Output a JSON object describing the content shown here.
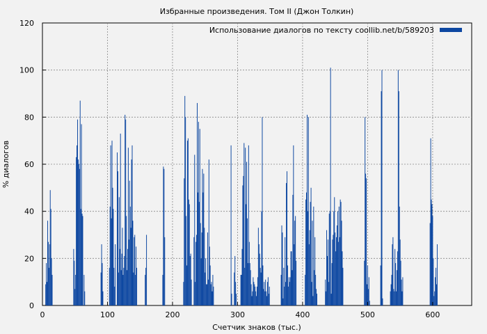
{
  "chart_data": {
    "type": "bar",
    "title": "Избранные произведения. Том II (Джон Толкин)",
    "xlabel": "Счетчик знаков (тыс.)",
    "ylabel": "% диалогов",
    "xlim": [
      0,
      660
    ],
    "ylim": [
      0,
      120
    ],
    "xticks": [
      0,
      100,
      200,
      300,
      400,
      500,
      600
    ],
    "yticks": [
      0,
      20,
      40,
      60,
      80,
      100,
      120
    ],
    "grid": true,
    "legend_position": "top-right",
    "series": [
      {
        "name": "Использование диалогов по тексту coollib.net/b/589203",
        "color": "#0d47a1",
        "points": [
          [
            5,
            9
          ],
          [
            6,
            18
          ],
          [
            7,
            10
          ],
          [
            8,
            36
          ],
          [
            9,
            27
          ],
          [
            10,
            16
          ],
          [
            11,
            26
          ],
          [
            12,
            49
          ],
          [
            13,
            41
          ],
          [
            14,
            20
          ],
          [
            15,
            13
          ],
          [
            48,
            24
          ],
          [
            49,
            19
          ],
          [
            50,
            7
          ],
          [
            51,
            13
          ],
          [
            52,
            63
          ],
          [
            53,
            68
          ],
          [
            54,
            79
          ],
          [
            55,
            62
          ],
          [
            56,
            60
          ],
          [
            57,
            58
          ],
          [
            58,
            87
          ],
          [
            59,
            41
          ],
          [
            60,
            77
          ],
          [
            61,
            39
          ],
          [
            62,
            38
          ],
          [
            64,
            13
          ],
          [
            65,
            6
          ],
          [
            90,
            14
          ],
          [
            91,
            26
          ],
          [
            92,
            18
          ],
          [
            93,
            6
          ],
          [
            103,
            16
          ],
          [
            104,
            42
          ],
          [
            105,
            68
          ],
          [
            106,
            37
          ],
          [
            107,
            70
          ],
          [
            108,
            50
          ],
          [
            109,
            41
          ],
          [
            110,
            16
          ],
          [
            111,
            8
          ],
          [
            112,
            26
          ],
          [
            115,
            65
          ],
          [
            116,
            57
          ],
          [
            117,
            14
          ],
          [
            118,
            46
          ],
          [
            119,
            24
          ],
          [
            120,
            73
          ],
          [
            121,
            15
          ],
          [
            122,
            22
          ],
          [
            123,
            33
          ],
          [
            124,
            13
          ],
          [
            125,
            16
          ],
          [
            126,
            21
          ],
          [
            127,
            81
          ],
          [
            128,
            79
          ],
          [
            129,
            38
          ],
          [
            130,
            15
          ],
          [
            131,
            24
          ],
          [
            132,
            67
          ],
          [
            133,
            28
          ],
          [
            134,
            53
          ],
          [
            135,
            42
          ],
          [
            136,
            33
          ],
          [
            137,
            62
          ],
          [
            138,
            68
          ],
          [
            139,
            36
          ],
          [
            140,
            14
          ],
          [
            141,
            29
          ],
          [
            142,
            30
          ],
          [
            143,
            13
          ],
          [
            144,
            25
          ],
          [
            145,
            16
          ],
          [
            158,
            13
          ],
          [
            159,
            16
          ],
          [
            160,
            30
          ],
          [
            185,
            13
          ],
          [
            186,
            59
          ],
          [
            187,
            58
          ],
          [
            188,
            29
          ],
          [
            217,
            10
          ],
          [
            218,
            54
          ],
          [
            219,
            89
          ],
          [
            220,
            80
          ],
          [
            221,
            38
          ],
          [
            222,
            17
          ],
          [
            223,
            70
          ],
          [
            224,
            71
          ],
          [
            225,
            45
          ],
          [
            226,
            43
          ],
          [
            227,
            21
          ],
          [
            228,
            22
          ],
          [
            229,
            11
          ],
          [
            233,
            29
          ],
          [
            234,
            64
          ],
          [
            235,
            10
          ],
          [
            236,
            27
          ],
          [
            237,
            30
          ],
          [
            238,
            86
          ],
          [
            239,
            48
          ],
          [
            240,
            78
          ],
          [
            241,
            44
          ],
          [
            242,
            75
          ],
          [
            243,
            35
          ],
          [
            244,
            20
          ],
          [
            245,
            31
          ],
          [
            246,
            58
          ],
          [
            247,
            48
          ],
          [
            248,
            56
          ],
          [
            249,
            33
          ],
          [
            250,
            14
          ],
          [
            251,
            20
          ],
          [
            252,
            9
          ],
          [
            253,
            9
          ],
          [
            254,
            31
          ],
          [
            255,
            11
          ],
          [
            256,
            62
          ],
          [
            257,
            25
          ],
          [
            258,
            17
          ],
          [
            259,
            9
          ],
          [
            260,
            10
          ],
          [
            261,
            6
          ],
          [
            262,
            13
          ],
          [
            263,
            8
          ],
          [
            290,
            68
          ],
          [
            291,
            5
          ],
          [
            295,
            14
          ],
          [
            296,
            21
          ],
          [
            297,
            10
          ],
          [
            298,
            5
          ],
          [
            305,
            13
          ],
          [
            306,
            13
          ],
          [
            307,
            24
          ],
          [
            308,
            51
          ],
          [
            309,
            55
          ],
          [
            310,
            69
          ],
          [
            311,
            16
          ],
          [
            312,
            67
          ],
          [
            313,
            43
          ],
          [
            314,
            61
          ],
          [
            315,
            37
          ],
          [
            316,
            18
          ],
          [
            317,
            68
          ],
          [
            318,
            27
          ],
          [
            319,
            18
          ],
          [
            320,
            15
          ],
          [
            321,
            9
          ],
          [
            322,
            4
          ],
          [
            323,
            6
          ],
          [
            324,
            12
          ],
          [
            325,
            10
          ],
          [
            326,
            9
          ],
          [
            327,
            8
          ],
          [
            328,
            6
          ],
          [
            329,
            4
          ],
          [
            330,
            8
          ],
          [
            331,
            12
          ],
          [
            332,
            33
          ],
          [
            333,
            26
          ],
          [
            334,
            22
          ],
          [
            335,
            16
          ],
          [
            336,
            14
          ],
          [
            337,
            40
          ],
          [
            338,
            80
          ],
          [
            339,
            17
          ],
          [
            340,
            7
          ],
          [
            341,
            10
          ],
          [
            342,
            6
          ],
          [
            343,
            11
          ],
          [
            344,
            6
          ],
          [
            345,
            4
          ],
          [
            346,
            10
          ],
          [
            347,
            12
          ],
          [
            348,
            5
          ],
          [
            349,
            8
          ],
          [
            367,
            13
          ],
          [
            368,
            34
          ],
          [
            369,
            31
          ],
          [
            370,
            3
          ],
          [
            371,
            16
          ],
          [
            372,
            8
          ],
          [
            373,
            29
          ],
          [
            374,
            10
          ],
          [
            375,
            52
          ],
          [
            376,
            57
          ],
          [
            377,
            17
          ],
          [
            378,
            8
          ],
          [
            379,
            12
          ],
          [
            380,
            10
          ],
          [
            381,
            12
          ],
          [
            382,
            23
          ],
          [
            383,
            23
          ],
          [
            384,
            15
          ],
          [
            385,
            47
          ],
          [
            386,
            68
          ],
          [
            387,
            26
          ],
          [
            388,
            36
          ],
          [
            389,
            38
          ],
          [
            390,
            19
          ],
          [
            404,
            13
          ],
          [
            405,
            45
          ],
          [
            406,
            48
          ],
          [
            407,
            81
          ],
          [
            408,
            40
          ],
          [
            409,
            80
          ],
          [
            410,
            26
          ],
          [
            411,
            32
          ],
          [
            412,
            44
          ],
          [
            413,
            50
          ],
          [
            414,
            10
          ],
          [
            415,
            36
          ],
          [
            416,
            4
          ],
          [
            417,
            42
          ],
          [
            418,
            15
          ],
          [
            419,
            29
          ],
          [
            420,
            13
          ],
          [
            421,
            7
          ],
          [
            422,
            5
          ],
          [
            435,
            11
          ],
          [
            436,
            6
          ],
          [
            437,
            32
          ],
          [
            438,
            21
          ],
          [
            439,
            28
          ],
          [
            440,
            10
          ],
          [
            441,
            39
          ],
          [
            442,
            40
          ],
          [
            443,
            101
          ],
          [
            444,
            5
          ],
          [
            445,
            18
          ],
          [
            446,
            28
          ],
          [
            447,
            30
          ],
          [
            448,
            40
          ],
          [
            449,
            46
          ],
          [
            450,
            31
          ],
          [
            451,
            23
          ],
          [
            452,
            29
          ],
          [
            453,
            34
          ],
          [
            454,
            40
          ],
          [
            455,
            27
          ],
          [
            456,
            42
          ],
          [
            457,
            29
          ],
          [
            458,
            45
          ],
          [
            459,
            44
          ],
          [
            460,
            36
          ],
          [
            461,
            23
          ],
          [
            462,
            16
          ],
          [
            495,
            19
          ],
          [
            496,
            80
          ],
          [
            497,
            56
          ],
          [
            498,
            54
          ],
          [
            499,
            9
          ],
          [
            500,
            17
          ],
          [
            501,
            7
          ],
          [
            502,
            12
          ],
          [
            503,
            2
          ],
          [
            520,
            17
          ],
          [
            521,
            91
          ],
          [
            522,
            100
          ],
          [
            523,
            3
          ],
          [
            535,
            6
          ],
          [
            536,
            9
          ],
          [
            537,
            13
          ],
          [
            538,
            26
          ],
          [
            539,
            29
          ],
          [
            540,
            7
          ],
          [
            541,
            6
          ],
          [
            542,
            24
          ],
          [
            543,
            18
          ],
          [
            544,
            6
          ],
          [
            545,
            15
          ],
          [
            546,
            23
          ],
          [
            547,
            100
          ],
          [
            548,
            91
          ],
          [
            549,
            42
          ],
          [
            550,
            28
          ],
          [
            551,
            19
          ],
          [
            552,
            11
          ],
          [
            553,
            6
          ],
          [
            554,
            12
          ],
          [
            596,
            35
          ],
          [
            597,
            71
          ],
          [
            598,
            45
          ],
          [
            599,
            43
          ],
          [
            600,
            38
          ],
          [
            601,
            20
          ],
          [
            602,
            4
          ],
          [
            603,
            6
          ],
          [
            604,
            12
          ],
          [
            605,
            16
          ],
          [
            606,
            9
          ],
          [
            607,
            26
          ]
        ]
      }
    ]
  }
}
